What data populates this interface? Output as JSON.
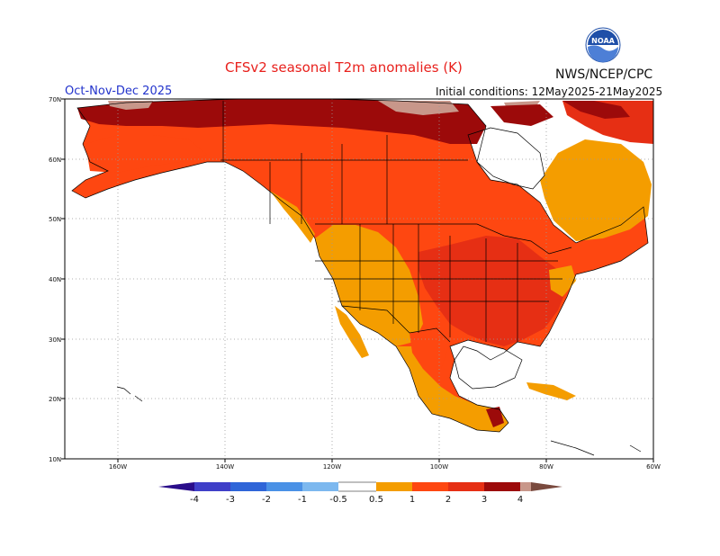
{
  "header": {
    "title": "CFSv2 seasonal T2m anomalies (K)",
    "agency": "NWS/NCEP/CPC",
    "season": "Oct-Nov-Dec 2025",
    "initial_conditions": "Initial conditions: 12May2025-21May2025"
  },
  "logo": {
    "icon": "noaa-logo-icon",
    "text": "NOAA"
  },
  "map": {
    "lat_ticks": [
      "70N",
      "60N",
      "50N",
      "40N",
      "30N",
      "20N",
      "10N"
    ],
    "lon_ticks": [
      "160W",
      "140W",
      "120W",
      "100W",
      "80W",
      "60W"
    ]
  },
  "colorbar": {
    "labels": [
      "-4",
      "-3",
      "-2",
      "-1",
      "-0.5",
      "0.5",
      "1",
      "2",
      "3",
      "4"
    ],
    "colors": {
      "lt_-4": "#2a0d8a",
      "-4_-3": "#3f3fc8",
      "-3_-2": "#2f65d8",
      "-2_-1": "#4a91e6",
      "-1_-0.5": "#7cb8ef",
      "-0.5_0.5": "#ffffff",
      "0.5_1": "#f49d00",
      "1_2": "#fe4711",
      "2_3": "#e62f14",
      "3_4": "#9c0a0a",
      "gt_4": "#c8978a",
      "extreme": "#7a4a3e"
    }
  }
}
